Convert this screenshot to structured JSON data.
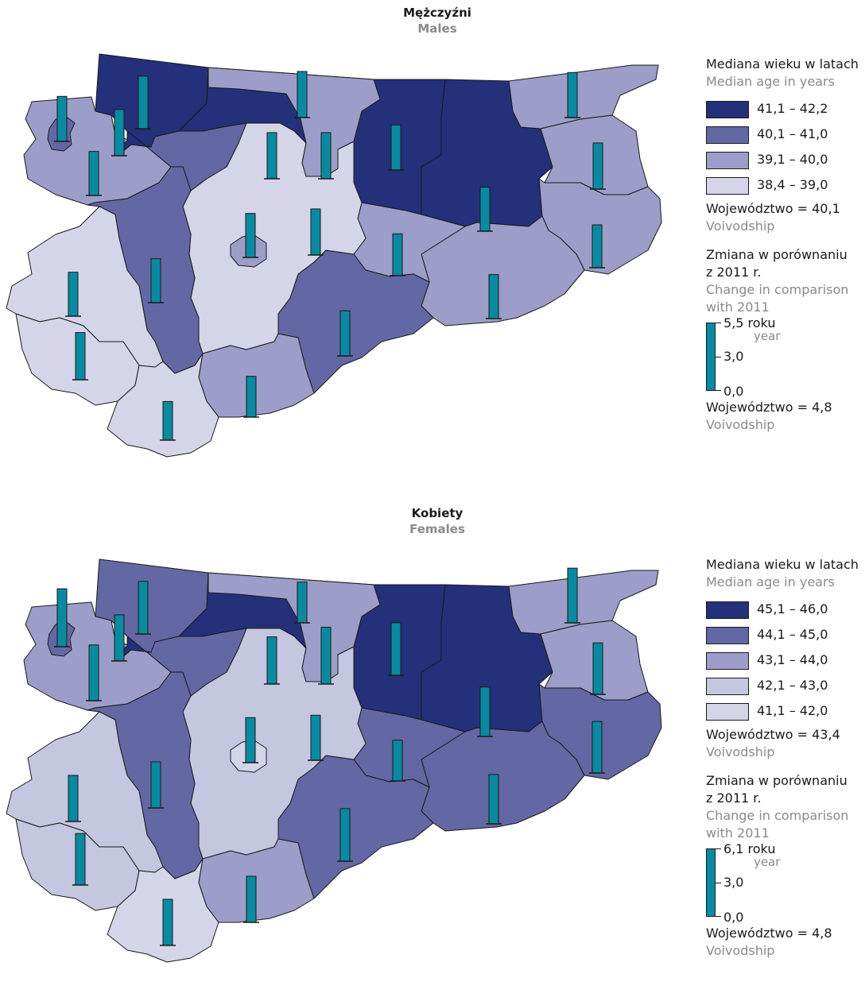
{
  "colors": {
    "c1": "#24307a",
    "c2": "#6367a3",
    "c3": "#9c9dc8",
    "c4": "#c5c7e0",
    "c5": "#d4d5e8",
    "bar": "#0a8aa0",
    "stroke": "#1a1a1a"
  },
  "panels": [
    {
      "title_pl": "Mężczyźni",
      "title_en": "Males",
      "legend": {
        "title_pl": "Mediana wieku w latach",
        "title_en": "Median age in years",
        "classes": [
          {
            "from": "41,1",
            "to": "42,2",
            "color": "#24307a"
          },
          {
            "from": "40,1",
            "to": "41,0",
            "color": "#6367a3"
          },
          {
            "from": "39,1",
            "to": "40,0",
            "color": "#9c9dc8"
          },
          {
            "from": "38,4",
            "to": "39,0",
            "color": "#d4d5e8"
          }
        ],
        "voiv_label": "Województwo = 40,1",
        "voiv_en": "Voivodship",
        "change_pl_1": "Zmiana w porównaniu",
        "change_pl_2": "z 2011 r.",
        "change_en_1": "Change in comparison",
        "change_en_2": "with 2011",
        "bar_max": "5,5 roku",
        "bar_unit": "year",
        "bar_mid": "3,0",
        "bar_min": "0,0",
        "voiv2_label": "Województwo = 4,8",
        "voiv2_en": "Voivodship"
      },
      "region_classes": [
        2,
        0,
        0,
        0,
        0,
        2,
        2,
        2,
        2,
        2,
        1,
        3,
        1,
        1,
        3,
        2,
        3,
        3,
        2,
        1,
        2,
        0
      ],
      "bar_values": [
        4.1,
        4.9,
        4.3,
        4.2,
        4.1,
        4.2,
        4.3,
        4.0,
        4.1,
        3.9,
        4.2,
        4.3,
        4.3,
        4.1,
        4.1,
        4.1,
        4.4,
        3.6,
        3.8,
        4.2,
        4.3,
        4.3
      ]
    },
    {
      "title_pl": "Kobiety",
      "title_en": "Females",
      "legend": {
        "title_pl": "Mediana wieku w latach",
        "title_en": "Median age in years",
        "classes": [
          {
            "from": "45,1",
            "to": "46,0",
            "color": "#24307a"
          },
          {
            "from": "44,1",
            "to": "45,0",
            "color": "#6367a3"
          },
          {
            "from": "43,1",
            "to": "44,0",
            "color": "#9c9dc8"
          },
          {
            "from": "42,1",
            "to": "43,0",
            "color": "#c5c7e0"
          },
          {
            "from": "41,1",
            "to": "42,0",
            "color": "#d4d5e8"
          }
        ],
        "voiv_label": "Województwo = 43,4",
        "voiv_en": "Voivodship",
        "change_pl_1": "Zmiana w porównaniu",
        "change_pl_2": "z 2011 r.",
        "change_en_1": "Change in comparison",
        "change_en_2": "with 2011",
        "bar_max": "6,1 roku",
        "bar_unit": "year",
        "bar_mid": "3,0",
        "bar_min": "0,0",
        "voiv2_label": "Województwo = 4,8",
        "voiv2_en": "Voivodship"
      },
      "region_classes": [
        2,
        1,
        0,
        0,
        0,
        2,
        2,
        1,
        1,
        1,
        1,
        3,
        1,
        1,
        3,
        4,
        3,
        4,
        2,
        1,
        2,
        0
      ],
      "bar_values": [
        5.2,
        4.9,
        5.3,
        4.9,
        4.6,
        5.1,
        4.8,
        4.8,
        4.6,
        3.8,
        4.9,
        4.2,
        4.4,
        4.3,
        4.3,
        4.2,
        4.8,
        4.3,
        4.3,
        5.4,
        3.8,
        4.3
      ]
    }
  ]
}
